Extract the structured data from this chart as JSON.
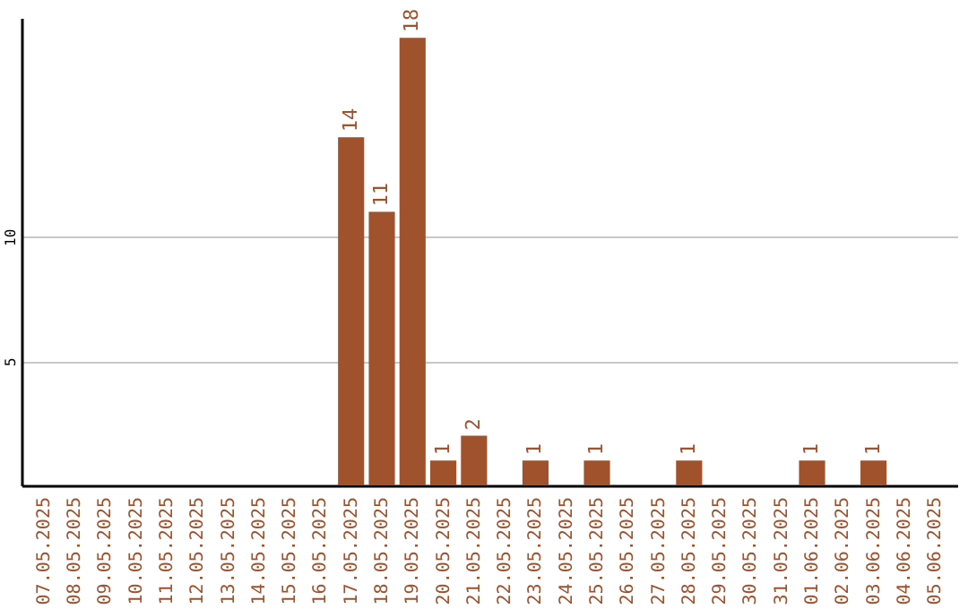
{
  "chart_data": {
    "type": "bar",
    "categories": [
      "07.05.2025",
      "08.05.2025",
      "09.05.2025",
      "10.05.2025",
      "11.05.2025",
      "12.05.2025",
      "13.05.2025",
      "14.05.2025",
      "15.05.2025",
      "16.05.2025",
      "17.05.2025",
      "18.05.2025",
      "19.05.2025",
      "20.05.2025",
      "21.05.2025",
      "22.05.2025",
      "23.05.2025",
      "24.05.2025",
      "25.05.2025",
      "26.05.2025",
      "27.05.2025",
      "28.05.2025",
      "29.05.2025",
      "30.05.2025",
      "31.05.2025",
      "01.06.2025",
      "02.06.2025",
      "03.06.2025",
      "04.06.2025",
      "05.06.2025"
    ],
    "values": [
      0,
      0,
      0,
      0,
      0,
      0,
      0,
      0,
      0,
      0,
      14,
      11,
      18,
      1,
      2,
      0,
      1,
      0,
      1,
      0,
      0,
      1,
      0,
      0,
      0,
      1,
      0,
      1,
      0,
      0
    ],
    "value_labels": [
      null,
      null,
      null,
      null,
      null,
      null,
      null,
      null,
      null,
      null,
      "14",
      "11",
      "18",
      "1",
      "2",
      null,
      "1",
      null,
      "1",
      null,
      null,
      "1",
      null,
      null,
      null,
      "1",
      null,
      "1",
      null,
      null
    ],
    "color": "#a0522d",
    "ylim": [
      0,
      18.8
    ],
    "yticks": [
      5,
      10
    ],
    "grid": "y"
  }
}
